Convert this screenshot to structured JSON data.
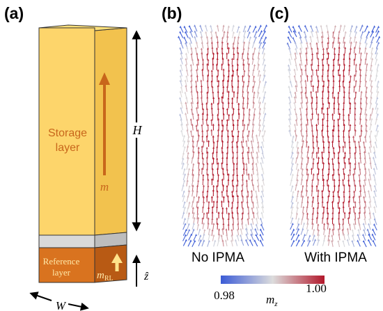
{
  "panels": {
    "a": {
      "label": "(a)"
    },
    "b": {
      "label": "(b)",
      "caption": "No IPMA"
    },
    "c": {
      "label": "(c)",
      "caption": "With IPMA"
    }
  },
  "schematic": {
    "storage_layer_line1": "Storage",
    "storage_layer_line2": "layer",
    "magnetization_symbol": "m",
    "reference_layer_line1": "Reference",
    "reference_layer_line2": "layer",
    "reference_m_symbol": "m",
    "reference_m_subscript": "RL",
    "height_label": "H",
    "width_label": "W",
    "z_axis_label": "ẑ"
  },
  "colorbar": {
    "min_label": "0.98",
    "max_label": "1.00",
    "variable_symbol": "m",
    "variable_subscript": "z",
    "colors": {
      "low": "#3b5bd6",
      "mid": "#dcdcdc",
      "high": "#b2182b"
    }
  },
  "colors": {
    "storage_front": "#fdd56b",
    "storage_side": "#f2c24e",
    "spacer": "#d9d9d9",
    "reference": "#d9731f",
    "arrow": "#c8661b"
  }
}
